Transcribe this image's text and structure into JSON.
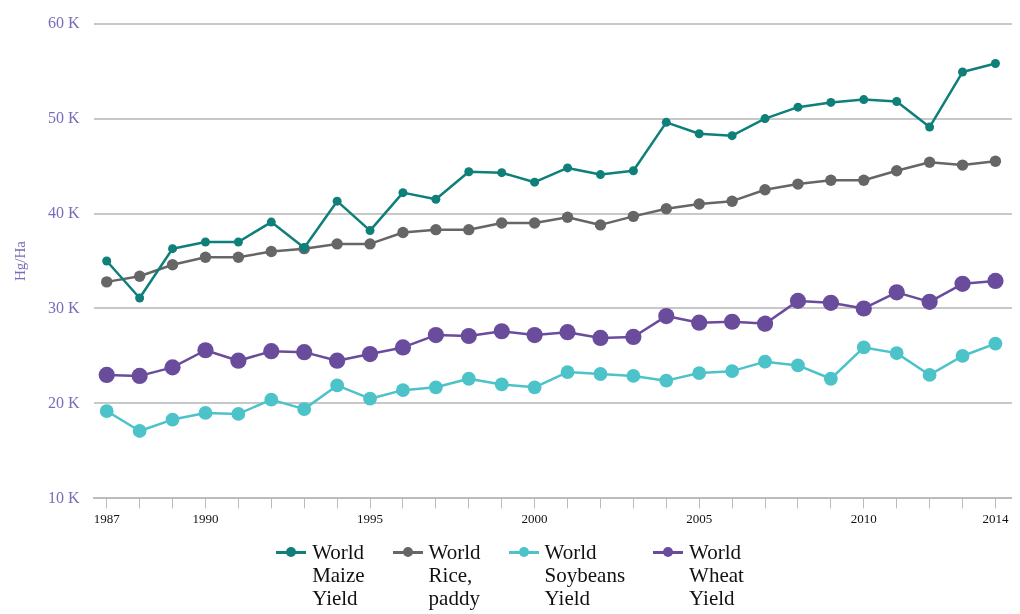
{
  "chart_data": {
    "type": "line",
    "ylabel": "Hg/Ha",
    "x": [
      1987,
      1988,
      1989,
      1990,
      1991,
      1992,
      1993,
      1994,
      1995,
      1996,
      1997,
      1998,
      1999,
      2000,
      2001,
      2002,
      2003,
      2004,
      2005,
      2006,
      2007,
      2008,
      2009,
      2010,
      2011,
      2012,
      2013,
      2014
    ],
    "xlim": [
      1986.6,
      2014.5
    ],
    "xticks": [
      1987,
      {
        "value": 1988,
        "label": null
      },
      {
        "value": 1989,
        "label": null
      },
      1990,
      {
        "value": 1991,
        "label": null
      },
      {
        "value": 1992,
        "label": null
      },
      {
        "value": 1993,
        "label": null
      },
      {
        "value": 1994,
        "label": null
      },
      1995,
      {
        "value": 1996,
        "label": null
      },
      {
        "value": 1997,
        "label": null
      },
      {
        "value": 1998,
        "label": null
      },
      {
        "value": 1999,
        "label": null
      },
      2000,
      {
        "value": 2001,
        "label": null
      },
      {
        "value": 2002,
        "label": null
      },
      {
        "value": 2003,
        "label": null
      },
      {
        "value": 2004,
        "label": null
      },
      2005,
      {
        "value": 2006,
        "label": null
      },
      {
        "value": 2007,
        "label": null
      },
      {
        "value": 2008,
        "label": null
      },
      {
        "value": 2009,
        "label": null
      },
      2010,
      {
        "value": 2011,
        "label": null
      },
      {
        "value": 2012,
        "label": null
      },
      {
        "value": 2013,
        "label": null
      },
      2014
    ],
    "ylim": [
      10000,
      60000
    ],
    "yticks": [
      {
        "value": 10000,
        "label": "10 K"
      },
      {
        "value": 20000,
        "label": "20 K"
      },
      {
        "value": 30000,
        "label": "30 K"
      },
      {
        "value": 40000,
        "label": "40 K"
      },
      {
        "value": 50000,
        "label": "50 K"
      },
      {
        "value": 60000,
        "label": "60 K"
      }
    ],
    "grid": "y",
    "legend": "bottom",
    "marker": "circle",
    "line_style": "solid",
    "series": [
      {
        "name": "World Maize Yield",
        "color": "#0f7f7a",
        "values": [
          35000,
          31100,
          36300,
          37000,
          37000,
          39100,
          36400,
          41300,
          38200,
          42200,
          41500,
          44400,
          44300,
          43300,
          44800,
          44100,
          44500,
          49600,
          48400,
          48200,
          50000,
          51200,
          51700,
          52000,
          51800,
          49100,
          54900,
          55800
        ]
      },
      {
        "name": "World Rice, paddy Yield",
        "color": "#666666",
        "values": [
          32800,
          33400,
          34600,
          35400,
          35400,
          36000,
          36300,
          36800,
          36800,
          38000,
          38300,
          38300,
          39000,
          39000,
          39600,
          38800,
          39700,
          40500,
          41000,
          41300,
          42500,
          43100,
          43500,
          43500,
          44500,
          45400,
          45100,
          45500
        ]
      },
      {
        "name": "World Soybeans Yield",
        "color": "#4cc3c9",
        "values": [
          19200,
          17100,
          18300,
          19000,
          18900,
          20400,
          19400,
          21900,
          20500,
          21400,
          21700,
          22600,
          22000,
          21700,
          23300,
          23100,
          22900,
          22400,
          23200,
          23400,
          24400,
          24000,
          22600,
          25900,
          25300,
          23000,
          25000,
          26300
        ]
      },
      {
        "name": "World Wheat Yield",
        "color": "#6a4c9c",
        "values": [
          23000,
          22900,
          23800,
          25600,
          24500,
          25500,
          25400,
          24500,
          25200,
          25900,
          27200,
          27100,
          27600,
          27200,
          27500,
          26900,
          27000,
          29200,
          28500,
          28600,
          28400,
          30800,
          30600,
          30000,
          31700,
          30700,
          32600,
          32900
        ]
      }
    ]
  }
}
